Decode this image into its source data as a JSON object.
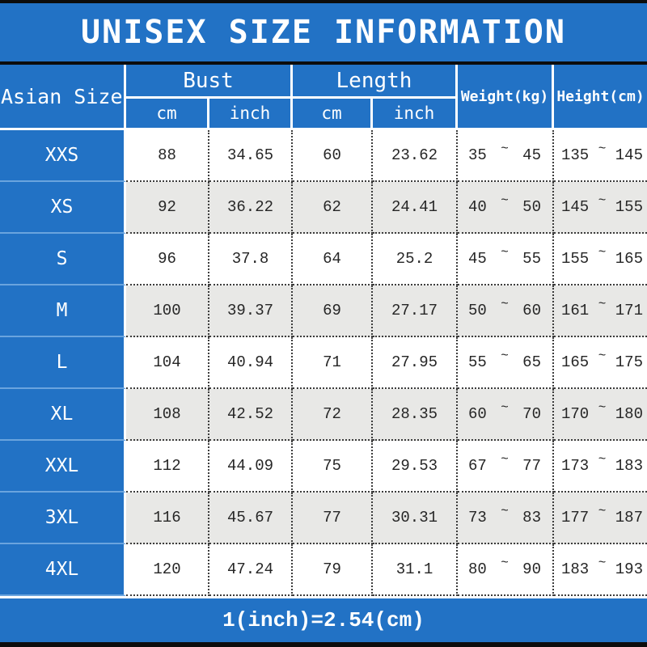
{
  "title": "UNISEX SIZE INFORMATION",
  "colors": {
    "accent_blue": "#2272c5",
    "row_stripe": "#e8e8e6",
    "header_text": "#ffffff",
    "body_text": "#262626"
  },
  "chart_data": {
    "type": "table",
    "title": "UNISEX SIZE INFORMATION",
    "footnote": "1(inch)=2.54(cm)",
    "tilde": "~",
    "column_groups": [
      {
        "label": "Asian Size",
        "rowspan": 2
      },
      {
        "label": "Bust",
        "subcolumns": [
          "cm",
          "inch"
        ]
      },
      {
        "label": "Length",
        "subcolumns": [
          "cm",
          "inch"
        ]
      },
      {
        "label": "Weight(kg)",
        "rowspan": 2
      },
      {
        "label": "Height(cm)",
        "rowspan": 2
      }
    ],
    "rows": [
      {
        "size": "XXS",
        "bust_cm": "88",
        "bust_inch": "34.65",
        "length_cm": "60",
        "length_inch": "23.62",
        "weight_min": "35",
        "weight_max": "45",
        "height_min": "135",
        "height_max": "145"
      },
      {
        "size": "XS",
        "bust_cm": "92",
        "bust_inch": "36.22",
        "length_cm": "62",
        "length_inch": "24.41",
        "weight_min": "40",
        "weight_max": "50",
        "height_min": "145",
        "height_max": "155"
      },
      {
        "size": "S",
        "bust_cm": "96",
        "bust_inch": "37.8",
        "length_cm": "64",
        "length_inch": "25.2",
        "weight_min": "45",
        "weight_max": "55",
        "height_min": "155",
        "height_max": "165"
      },
      {
        "size": "M",
        "bust_cm": "100",
        "bust_inch": "39.37",
        "length_cm": "69",
        "length_inch": "27.17",
        "weight_min": "50",
        "weight_max": "60",
        "height_min": "161",
        "height_max": "171"
      },
      {
        "size": "L",
        "bust_cm": "104",
        "bust_inch": "40.94",
        "length_cm": "71",
        "length_inch": "27.95",
        "weight_min": "55",
        "weight_max": "65",
        "height_min": "165",
        "height_max": "175"
      },
      {
        "size": "XL",
        "bust_cm": "108",
        "bust_inch": "42.52",
        "length_cm": "72",
        "length_inch": "28.35",
        "weight_min": "60",
        "weight_max": "70",
        "height_min": "170",
        "height_max": "180"
      },
      {
        "size": "XXL",
        "bust_cm": "112",
        "bust_inch": "44.09",
        "length_cm": "75",
        "length_inch": "29.53",
        "weight_min": "67",
        "weight_max": "77",
        "height_min": "173",
        "height_max": "183"
      },
      {
        "size": "3XL",
        "bust_cm": "116",
        "bust_inch": "45.67",
        "length_cm": "77",
        "length_inch": "30.31",
        "weight_min": "73",
        "weight_max": "83",
        "height_min": "177",
        "height_max": "187"
      },
      {
        "size": "4XL",
        "bust_cm": "120",
        "bust_inch": "47.24",
        "length_cm": "79",
        "length_inch": "31.1",
        "weight_min": "80",
        "weight_max": "90",
        "height_min": "183",
        "height_max": "193"
      }
    ]
  }
}
